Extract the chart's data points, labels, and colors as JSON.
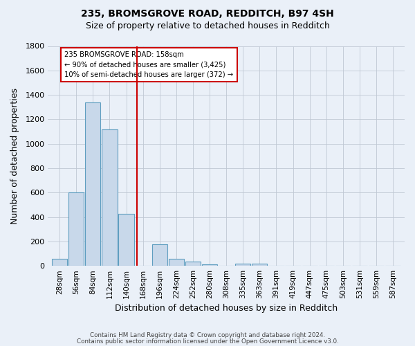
{
  "title": "235, BROMSGROVE ROAD, REDDITCH, B97 4SH",
  "subtitle": "Size of property relative to detached houses in Redditch",
  "xlabel": "Distribution of detached houses by size in Redditch",
  "ylabel": "Number of detached properties",
  "footnote1": "Contains HM Land Registry data © Crown copyright and database right 2024.",
  "footnote2": "Contains public sector information licensed under the Open Government Licence v3.0.",
  "bar_labels": [
    "28sqm",
    "56sqm",
    "84sqm",
    "112sqm",
    "140sqm",
    "168sqm",
    "196sqm",
    "224sqm",
    "252sqm",
    "280sqm",
    "308sqm",
    "335sqm",
    "363sqm",
    "391sqm",
    "419sqm",
    "447sqm",
    "475sqm",
    "503sqm",
    "531sqm",
    "559sqm",
    "587sqm"
  ],
  "bar_heights": [
    55,
    600,
    1340,
    1120,
    425,
    0,
    175,
    60,
    35,
    10,
    0,
    20,
    20,
    0,
    0,
    0,
    0,
    0,
    0,
    0,
    0
  ],
  "bar_color": "#c8d8ea",
  "bar_edge_color": "#5f9ec0",
  "background_color": "#eaf0f8",
  "grid_color": "#c0c8d4",
  "vline_color": "#cc0000",
  "annotation_text": "235 BROMSGROVE ROAD: 158sqm\n← 90% of detached houses are smaller (3,425)\n10% of semi-detached houses are larger (372) →",
  "annotation_box_color": "white",
  "annotation_box_edge": "#cc0000",
  "ylim": [
    0,
    1800
  ],
  "yticks": [
    0,
    200,
    400,
    600,
    800,
    1000,
    1200,
    1400,
    1600,
    1800
  ]
}
